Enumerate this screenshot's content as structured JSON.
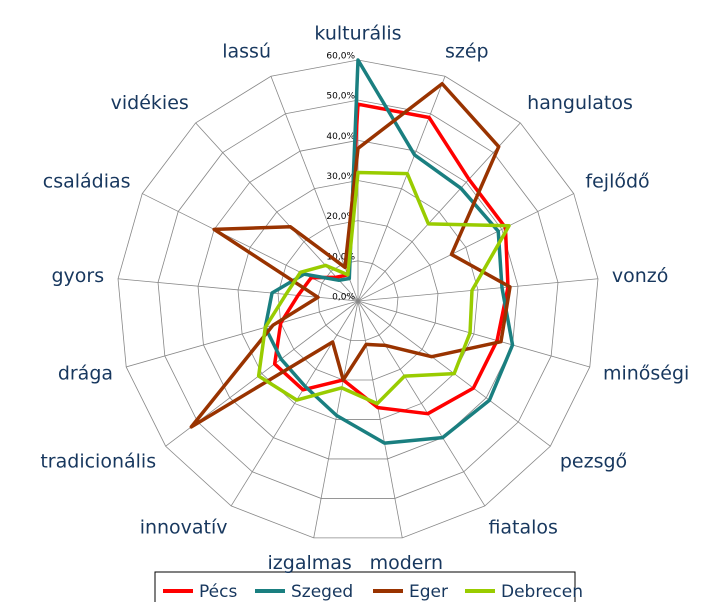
{
  "chart_data": {
    "type": "radar",
    "categories": [
      "kulturális",
      "szép",
      "hangulatos",
      "fejlődő",
      "vonzó",
      "minőségi",
      "pezsgő",
      "fiatalos",
      "modern",
      "izgalmas",
      "innovatív",
      "tradicionális",
      "drága",
      "gyors",
      "családias",
      "vidékies",
      "lassú"
    ],
    "series": [
      {
        "name": "Pécs",
        "color": "#ff0000",
        "values": [
          49,
          49,
          41,
          41,
          37.5,
          36,
          36,
          33,
          27,
          20,
          26,
          26,
          20,
          15,
          13,
          8,
          7
        ]
      },
      {
        "name": "Szeged",
        "color": "#1a7f80",
        "values": [
          60,
          39,
          38,
          39,
          36,
          40,
          41,
          40,
          36,
          29,
          25,
          24,
          24,
          21.5,
          15,
          7,
          6
        ]
      },
      {
        "name": "Eger",
        "color": "#993300",
        "values": [
          38,
          58,
          52,
          26,
          38,
          37,
          23,
          13,
          11,
          20,
          12,
          52,
          22,
          10,
          40,
          25,
          9
        ]
      },
      {
        "name": "Debrecen",
        "color": "#99cc00",
        "values": [
          32,
          34,
          26,
          42,
          28.5,
          29,
          30,
          22,
          26,
          22,
          29,
          31,
          24,
          18,
          16,
          12,
          7
        ]
      }
    ],
    "ylim": [
      0,
      60
    ],
    "yticks": [
      {
        "value": 0,
        "label": "0,0%"
      },
      {
        "value": 10,
        "label": "10,0%"
      },
      {
        "value": 20,
        "label": "20,0%"
      },
      {
        "value": 30,
        "label": "30,0%"
      },
      {
        "value": 40,
        "label": "40,0%"
      },
      {
        "value": 50,
        "label": "50,0%"
      },
      {
        "value": 60,
        "label": "60,0%"
      }
    ],
    "grid": true,
    "legend": "bottom"
  }
}
